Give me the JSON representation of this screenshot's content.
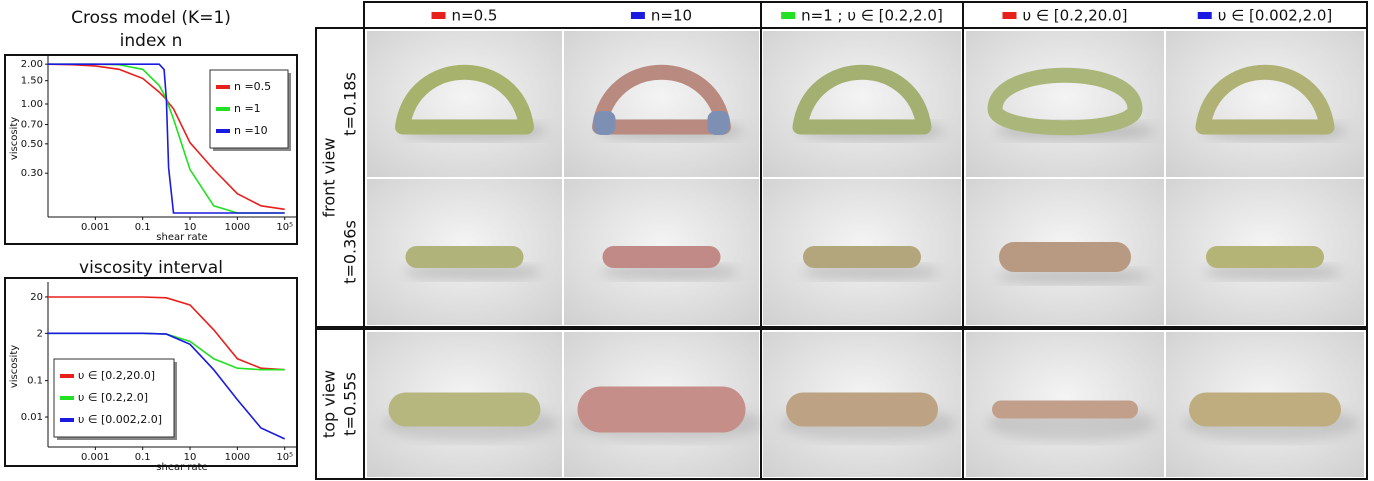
{
  "chart_data": [
    {
      "type": "line",
      "title": "Cross model (K=1)",
      "subtitle": "index n",
      "x_label": "shear rate",
      "y_label": "viscosity",
      "log_x": true,
      "log_y": true,
      "legend": "upper right",
      "x": [
        1e-05,
        0.0001,
        0.001,
        0.01,
        0.1,
        0.5,
        0.8,
        1,
        1.25,
        2,
        10,
        100,
        1000,
        10000,
        100000
      ],
      "series": [
        {
          "name": "n =0.5",
          "color": "#e8201c",
          "values": [
            2.0,
            1.98,
            1.94,
            1.83,
            1.56,
            1.23,
            1.13,
            1.08,
            1.02,
            0.92,
            0.51,
            0.32,
            0.21,
            0.17,
            0.16
          ]
        },
        {
          "name": "n =1",
          "color": "#22e022",
          "values": [
            2.0,
            2.0,
            2.0,
            1.98,
            1.83,
            1.38,
            1.18,
            1.08,
            0.97,
            0.77,
            0.32,
            0.17,
            0.15,
            0.15,
            0.15
          ]
        },
        {
          "name": "n =10",
          "color": "#1a1ae0",
          "values": [
            2.0,
            2.0,
            2.0,
            2.0,
            2.0,
            2.0,
            1.82,
            1.08,
            0.33,
            0.15,
            0.15,
            0.15,
            0.15,
            0.15,
            0.15
          ]
        }
      ],
      "xlim": [
        1e-05,
        300000
      ],
      "ylim": [
        0.14,
        2.15
      ],
      "xticks": [
        0.001,
        0.1,
        10,
        1000,
        {
          "value": 100000,
          "label": "10⁵"
        }
      ],
      "yticks": [
        {
          "value": 2,
          "label": "2.00"
        },
        {
          "value": 1.5,
          "label": "1.50"
        },
        {
          "value": 1,
          "label": "1.00"
        },
        {
          "value": 0.7,
          "label": "0.70"
        },
        {
          "value": 0.5,
          "label": "0.50"
        },
        {
          "value": 0.3,
          "label": "0.30"
        }
      ]
    },
    {
      "type": "line",
      "title": "viscosity interval",
      "x_label": "shear rate",
      "y_label": "viscosity",
      "log_x": true,
      "log_y": true,
      "legend": "lower left",
      "x": [
        1e-05,
        0.0001,
        0.001,
        0.01,
        0.1,
        1,
        10,
        100,
        1000,
        10000,
        100000
      ],
      "series": [
        {
          "name": "υ ∈ [0.2,20.0]",
          "color": "#e8201c",
          "values": [
            20,
            20,
            20,
            20,
            20,
            19,
            12,
            2.5,
            0.4,
            0.22,
            0.2
          ]
        },
        {
          "name": "υ ∈ [0.2,2.0]",
          "color": "#22e022",
          "values": [
            2,
            2,
            2,
            2,
            2,
            1.9,
            1.2,
            0.4,
            0.22,
            0.2,
            0.2
          ]
        },
        {
          "name": "υ ∈ [0.002,2.0]",
          "color": "#1a1ae0",
          "values": [
            2,
            2,
            2,
            2,
            2,
            1.9,
            1.0,
            0.2,
            0.03,
            0.005,
            0.0025
          ]
        }
      ],
      "xlim": [
        1e-05,
        300000
      ],
      "ylim": [
        0.0015,
        40
      ],
      "xticks": [
        0.001,
        0.1,
        10,
        1000,
        {
          "value": 100000,
          "label": "10⁵"
        }
      ],
      "yticks": [
        20,
        2,
        0.1,
        0.01
      ]
    }
  ],
  "panel_grid": {
    "columns": [
      {
        "label": "n=0.5",
        "color": "#e8201c"
      },
      {
        "label": "n=10",
        "color": "#1a1ae0"
      },
      {
        "label": "n=1 ; υ ∈ [0.2,2.0]",
        "color": "#22e022"
      },
      {
        "label": "υ ∈ [0.2,20.0]",
        "color": "#e8201c"
      },
      {
        "label": "υ ∈ [0.002,2.0]",
        "color": "#1a1ae0"
      }
    ],
    "row_groups": [
      {
        "label": "front view",
        "times": [
          "t=0.18s",
          "t=0.36s"
        ]
      },
      {
        "label": "top view",
        "times": [
          "t=0.55s"
        ]
      }
    ]
  }
}
